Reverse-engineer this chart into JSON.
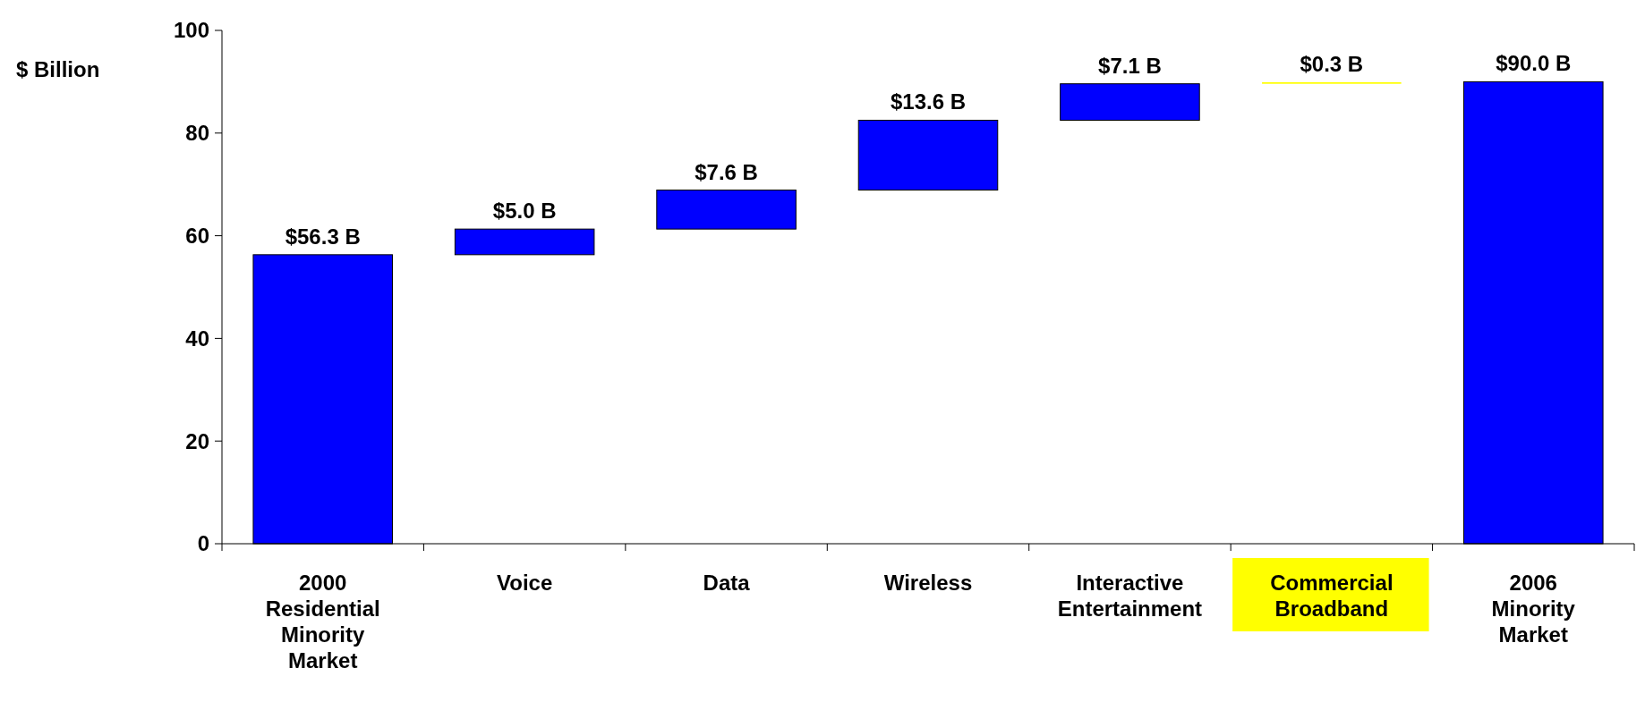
{
  "chart_data": {
    "type": "bar",
    "ylabel": "$ Billion",
    "categories": [
      "2000 Residential Minority Market",
      "Voice",
      "Data",
      "Wireless",
      "Interactive Entertainment",
      "Commercial Broadband",
      "2006 Minority Market"
    ],
    "values": [
      56.3,
      5.0,
      7.6,
      13.6,
      7.1,
      0.3,
      90.0
    ],
    "base": [
      0,
      56.3,
      61.3,
      68.9,
      82.5,
      89.6,
      0
    ],
    "colors": [
      "#0000ff",
      "#0000ff",
      "#0000ff",
      "#0000ff",
      "#0000ff",
      "#ffff00",
      "#0000ff"
    ],
    "value_labels": [
      "$56.3 B",
      "$5.0 B",
      "$7.6 B",
      "$13.6 B",
      "$7.1 B",
      "$0.3 B",
      "$90.0 B"
    ],
    "ylim": [
      0,
      100
    ],
    "yticks": [
      0,
      20,
      40,
      60,
      80,
      100
    ]
  }
}
